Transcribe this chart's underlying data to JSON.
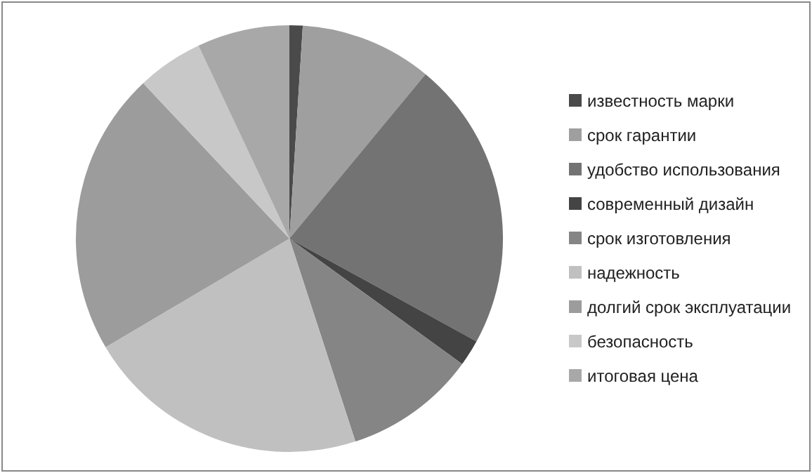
{
  "chart_data": {
    "type": "pie",
    "categories": [
      "известность марки",
      "срок гарантии",
      "удобство использования",
      "современный дизайн",
      "срок изготовления",
      "надежность",
      "долгий срок эксплуатации",
      "безопасность",
      "итоговая цена"
    ],
    "values": [
      1,
      10,
      22,
      2,
      10,
      21.5,
      21.5,
      5,
      7
    ],
    "colors": [
      "#4a4a4a",
      "#9f9f9f",
      "#737373",
      "#444444",
      "#858585",
      "#c0c0c0",
      "#9c9c9c",
      "#c8c8c8",
      "#a8a8a8"
    ],
    "legend": "right"
  }
}
